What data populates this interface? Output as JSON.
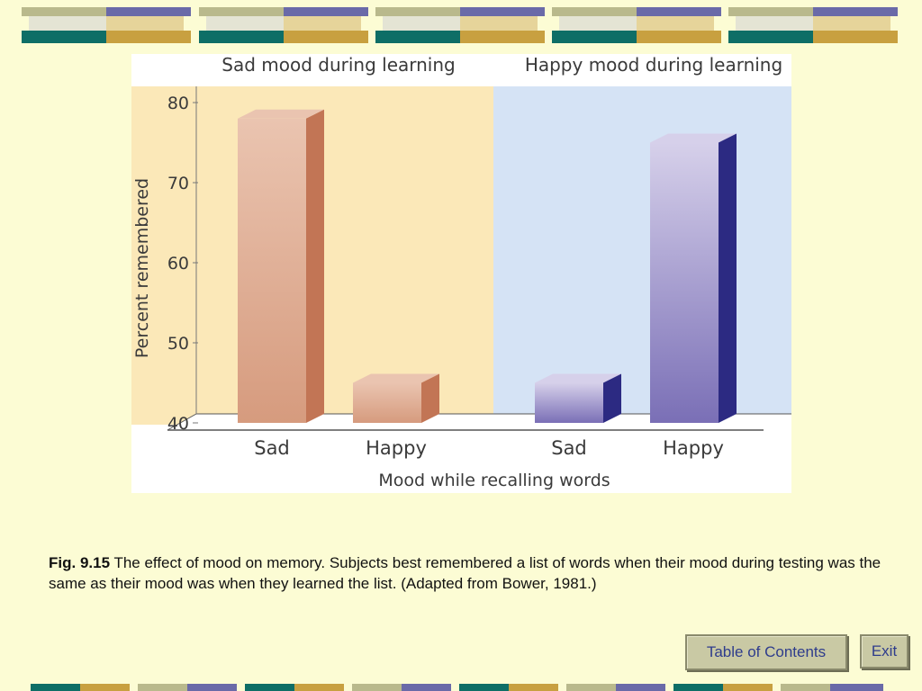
{
  "chart_data": {
    "type": "bar",
    "panels": [
      "Sad mood during learning",
      "Happy mood during learning"
    ],
    "categories": [
      "Sad",
      "Happy",
      "Sad",
      "Happy"
    ],
    "values": [
      78,
      45,
      45,
      75
    ],
    "panel_of_bar": [
      0,
      0,
      1,
      1
    ],
    "ylabel": "Percent remembered",
    "xlabel": "Mood while recalling words",
    "ylim": [
      40,
      80
    ],
    "yticks": [
      40,
      50,
      60,
      70,
      80
    ],
    "colors": {
      "sad_panel_bg": "#fbe8b8",
      "happy_panel_bg": "#d5e3f5",
      "sad_bar_front": "#d69b7e",
      "sad_bar_side": "#c27555",
      "sad_bar_top": "#eac4b0",
      "happy_bar_front": "#7a6fb6",
      "happy_bar_side": "#2c2a82",
      "happy_bar_top": "#d6d0ea"
    }
  },
  "caption": {
    "label": "Fig. 9.15",
    "text": " The effect of mood on memory. Subjects best remembered a list of words when their mood during testing was the same as their mood was when they learned the list. (Adapted from Bower, 1981.)"
  },
  "nav": {
    "toc_label": "Table of Contents",
    "exit_label": "Exit"
  }
}
